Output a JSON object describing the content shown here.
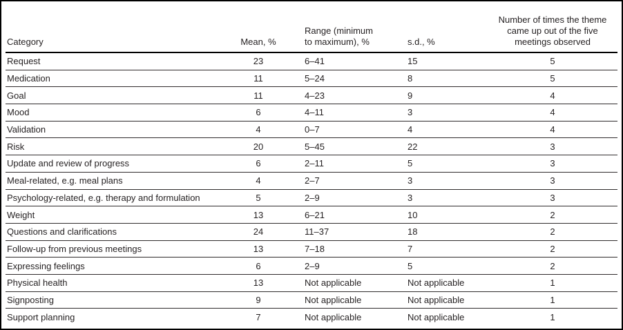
{
  "colors": {
    "text": "#231f20",
    "row_rule": "#2e2a2b",
    "header_rule": "#000000",
    "frame_border": "#000000",
    "background": "#ffffff"
  },
  "table": {
    "columns": [
      {
        "label": "Category",
        "align": "left"
      },
      {
        "label": "Mean, %",
        "align": "center"
      },
      {
        "label": "Range (minimum\nto maximum), %",
        "align": "left"
      },
      {
        "label": "s.d., %",
        "align": "left"
      },
      {
        "label": "Number of times the theme\ncame up out of the five\nmeetings observed",
        "align": "center"
      }
    ],
    "rows": [
      [
        "Request",
        "23",
        "6–41",
        "15",
        "5"
      ],
      [
        "Medication",
        "11",
        "5–24",
        "8",
        "5"
      ],
      [
        "Goal",
        "11",
        "4–23",
        "9",
        "4"
      ],
      [
        "Mood",
        "6",
        "4–11",
        "3",
        "4"
      ],
      [
        "Validation",
        "4",
        "0–7",
        "4",
        "4"
      ],
      [
        "Risk",
        "20",
        "5–45",
        "22",
        "3"
      ],
      [
        "Update and review of progress",
        "6",
        "2–11",
        "5",
        "3"
      ],
      [
        "Meal-related, e.g. meal plans",
        "4",
        "2–7",
        "3",
        "3"
      ],
      [
        "Psychology-related, e.g. therapy and formulation",
        "5",
        "2–9",
        "3",
        "3"
      ],
      [
        "Weight",
        "13",
        "6–21",
        "10",
        "2"
      ],
      [
        "Questions and clarifications",
        "24",
        "11–37",
        "18",
        "2"
      ],
      [
        "Follow-up from previous meetings",
        "13",
        "7–18",
        "7",
        "2"
      ],
      [
        "Expressing feelings",
        "6",
        "2–9",
        "5",
        "2"
      ],
      [
        "Physical health",
        "13",
        "Not applicable",
        "Not applicable",
        "1"
      ],
      [
        "Signposting",
        "9",
        "Not applicable",
        "Not applicable",
        "1"
      ],
      [
        "Support planning",
        "7",
        "Not applicable",
        "Not applicable",
        "1"
      ]
    ]
  }
}
